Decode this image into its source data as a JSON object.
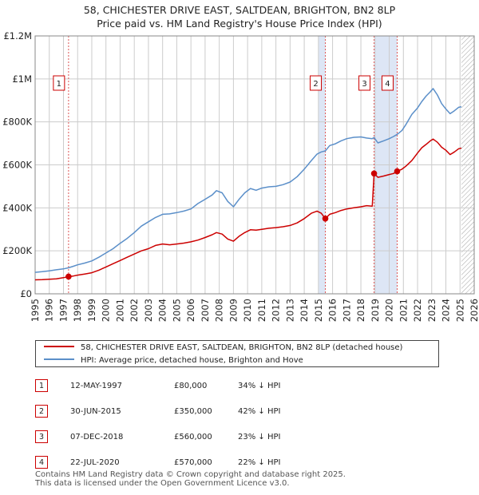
{
  "title": {
    "line1": "58, CHICHESTER DRIVE EAST, SALTDEAN, BRIGHTON, BN2 8LP",
    "line2": "Price paid vs. HM Land Registry's House Price Index (HPI)"
  },
  "legend": {
    "property_label": "58, CHICHESTER DRIVE EAST, SALTDEAN, BRIGHTON, BN2 8LP (detached house)",
    "hpi_label": "HPI: Average price, detached house, Brighton and Hove"
  },
  "sales": [
    {
      "num": "1",
      "date": "12-MAY-1997",
      "price": "£80,000",
      "hpi": "34% ↓ HPI"
    },
    {
      "num": "2",
      "date": "30-JUN-2015",
      "price": "£350,000",
      "hpi": "42% ↓ HPI"
    },
    {
      "num": "3",
      "date": "07-DEC-2018",
      "price": "£560,000",
      "hpi": "23% ↓ HPI"
    },
    {
      "num": "4",
      "date": "22-JUL-2020",
      "price": "£570,000",
      "hpi": "22% ↓ HPI"
    }
  ],
  "footer": {
    "line1": "Contains HM Land Registry data © Crown copyright and database right 2025.",
    "line2": "This data is licensed under the Open Government Licence v3.0."
  },
  "colors": {
    "property": "#cc0000",
    "hpi": "#5b8fc9",
    "shade": "#dde6f5",
    "grid": "#cccccc",
    "vline": "#dd5555"
  },
  "chart_data": {
    "type": "line",
    "title": "58, CHICHESTER DRIVE EAST, SALTDEAN, BRIGHTON, BN2 8LP",
    "subtitle": "Price paid vs. HM Land Registry's House Price Index (HPI)",
    "xlabel": "",
    "ylabel": "",
    "xlim": [
      1995,
      2026
    ],
    "ylim": [
      0,
      1200000
    ],
    "x_ticks": [
      1995,
      1996,
      1997,
      1998,
      1999,
      2000,
      2001,
      2002,
      2003,
      2004,
      2005,
      2006,
      2007,
      2008,
      2009,
      2010,
      2011,
      2012,
      2013,
      2014,
      2015,
      2016,
      2017,
      2018,
      2019,
      2020,
      2021,
      2022,
      2023,
      2024,
      2025,
      2026
    ],
    "y_ticks": [
      {
        "value": 0,
        "label": "£0"
      },
      {
        "value": 200000,
        "label": "£200K"
      },
      {
        "value": 400000,
        "label": "£400K"
      },
      {
        "value": 600000,
        "label": "£600K"
      },
      {
        "value": 800000,
        "label": "£800K"
      },
      {
        "value": 1000000,
        "label": "£1M"
      },
      {
        "value": 1200000,
        "label": "£1.2M"
      }
    ],
    "grid": true,
    "legend_position": "below",
    "shaded_ranges": [
      [
        2015.0,
        2015.5
      ],
      [
        2018.93,
        2020.56
      ]
    ],
    "hatched_from": 2025.1,
    "series": [
      {
        "name": "58, CHICHESTER DRIVE EAST, SALTDEAN, BRIGHTON, BN2 8LP (detached house)",
        "x": [
          1995.0,
          1995.5,
          1996.0,
          1996.5,
          1997.0,
          1997.36,
          1997.7,
          1998.0,
          1998.5,
          1999.0,
          1999.5,
          2000.0,
          2000.5,
          2001.0,
          2001.5,
          2002.0,
          2002.5,
          2003.0,
          2003.5,
          2004.0,
          2004.5,
          2005.0,
          2005.5,
          2006.0,
          2006.5,
          2007.0,
          2007.5,
          2007.8,
          2008.2,
          2008.6,
          2009.0,
          2009.4,
          2009.8,
          2010.2,
          2010.6,
          2011.0,
          2011.5,
          2012.0,
          2012.5,
          2013.0,
          2013.5,
          2014.0,
          2014.5,
          2014.9,
          2015.2,
          2015.49,
          2015.8,
          2016.2,
          2016.6,
          2017.0,
          2017.5,
          2018.0,
          2018.4,
          2018.8,
          2018.93,
          2019.2,
          2019.6,
          2020.0,
          2020.3,
          2020.56,
          2020.9,
          2021.2,
          2021.6,
          2022.0,
          2022.3,
          2022.6,
          2022.9,
          2023.1,
          2023.4,
          2023.7,
          2024.0,
          2024.3,
          2024.6,
          2024.9,
          2025.1
        ],
        "values": [
          65000,
          66000,
          68000,
          70000,
          75000,
          80000,
          83000,
          87000,
          92000,
          98000,
          110000,
          125000,
          140000,
          155000,
          170000,
          185000,
          200000,
          210000,
          225000,
          232000,
          228000,
          232000,
          236000,
          242000,
          250000,
          262000,
          275000,
          285000,
          278000,
          255000,
          245000,
          268000,
          285000,
          298000,
          296000,
          300000,
          305000,
          308000,
          312000,
          318000,
          330000,
          350000,
          375000,
          385000,
          375000,
          350000,
          370000,
          378000,
          388000,
          395000,
          400000,
          405000,
          410000,
          408000,
          560000,
          542000,
          548000,
          555000,
          560000,
          570000,
          580000,
          595000,
          620000,
          655000,
          680000,
          695000,
          712000,
          720000,
          705000,
          682000,
          668000,
          648000,
          660000,
          675000,
          678000
        ]
      },
      {
        "name": "HPI: Average price, detached house, Brighton and Hove",
        "x": [
          1995.0,
          1995.5,
          1996.0,
          1996.5,
          1997.0,
          1997.36,
          1997.7,
          1998.0,
          1998.5,
          1999.0,
          1999.5,
          2000.0,
          2000.5,
          2001.0,
          2001.5,
          2002.0,
          2002.5,
          2003.0,
          2003.5,
          2004.0,
          2004.5,
          2005.0,
          2005.5,
          2006.0,
          2006.5,
          2007.0,
          2007.5,
          2007.8,
          2008.2,
          2008.6,
          2009.0,
          2009.4,
          2009.8,
          2010.2,
          2010.6,
          2011.0,
          2011.5,
          2012.0,
          2012.5,
          2013.0,
          2013.5,
          2014.0,
          2014.5,
          2014.9,
          2015.2,
          2015.49,
          2015.8,
          2016.2,
          2016.6,
          2017.0,
          2017.5,
          2018.0,
          2018.4,
          2018.8,
          2018.93,
          2019.2,
          2019.6,
          2020.0,
          2020.3,
          2020.56,
          2020.9,
          2021.2,
          2021.6,
          2022.0,
          2022.3,
          2022.6,
          2022.9,
          2023.1,
          2023.4,
          2023.7,
          2024.0,
          2024.3,
          2024.6,
          2024.9,
          2025.1
        ],
        "values": [
          100000,
          103000,
          107000,
          112000,
          116000,
          121000,
          128000,
          135000,
          143000,
          153000,
          170000,
          190000,
          210000,
          235000,
          258000,
          285000,
          315000,
          335000,
          355000,
          370000,
          372000,
          378000,
          385000,
          395000,
          420000,
          440000,
          460000,
          480000,
          470000,
          430000,
          405000,
          440000,
          470000,
          490000,
          482000,
          492000,
          498000,
          500000,
          508000,
          520000,
          545000,
          580000,
          620000,
          650000,
          660000,
          665000,
          690000,
          698000,
          712000,
          722000,
          728000,
          730000,
          725000,
          722000,
          727000,
          702000,
          712000,
          722000,
          732000,
          742000,
          760000,
          790000,
          835000,
          865000,
          895000,
          920000,
          940000,
          955000,
          925000,
          885000,
          860000,
          838000,
          852000,
          868000,
          870000
        ]
      }
    ],
    "sale_points": [
      {
        "label": "1",
        "x": 1997.36,
        "value": 80000
      },
      {
        "label": "2",
        "x": 2015.49,
        "value": 350000
      },
      {
        "label": "3",
        "x": 2018.93,
        "value": 560000
      },
      {
        "label": "4",
        "x": 2020.56,
        "value": 570000
      }
    ]
  }
}
